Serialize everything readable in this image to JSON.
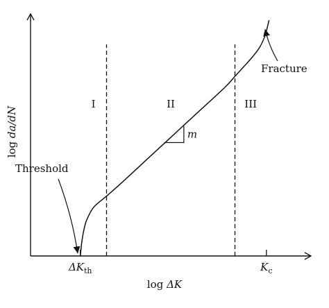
{
  "chart_data": {
    "type": "line",
    "title": "",
    "xlabel": {
      "prefix": "log ",
      "symbol": "ΔK"
    },
    "ylabel": {
      "prefix": "log ",
      "symbol": "da/dN"
    },
    "regions": [
      {
        "id": "I",
        "label": "I",
        "x_start": 0.0,
        "x_end": 1.0
      },
      {
        "id": "II",
        "label": "II",
        "x_start": 1.0,
        "x_end": 5.9
      },
      {
        "id": "III",
        "label": "III",
        "x_start": 5.9,
        "x_end": 7.1
      }
    ],
    "boundaries": [
      1.0,
      5.9
    ],
    "ticks": [
      {
        "x": 0.0,
        "main": "ΔK",
        "sub": "th"
      },
      {
        "x": 7.1,
        "main": "K",
        "sub": "c"
      }
    ],
    "curve": {
      "x": [
        0.0,
        0.05,
        0.12,
        0.22,
        0.35,
        0.5,
        0.7,
        1.0,
        1.5,
        2.5,
        3.5,
        4.5,
        5.5,
        5.9,
        6.3,
        6.6,
        6.85,
        7.05,
        7.2
      ],
      "y": [
        0.0,
        0.5,
        0.95,
        1.35,
        1.65,
        1.9,
        2.1,
        2.35,
        2.8,
        3.75,
        4.7,
        5.65,
        6.6,
        7.05,
        7.5,
        7.85,
        8.2,
        8.65,
        9.25
      ]
    },
    "slope_triangle": {
      "label": "m",
      "x0": 3.2,
      "x1": 3.95,
      "y0": 4.45,
      "y1": 5.1
    },
    "annotations": [
      {
        "text": "Threshold",
        "arrow_to": [
          -0.1,
          0.1
        ]
      },
      {
        "text": "Fracture",
        "arrow_to": [
          7.05,
          8.9
        ]
      }
    ],
    "xlim": [
      -1.9,
      8.8
    ],
    "ylim": [
      0.0,
      9.5
    ]
  }
}
